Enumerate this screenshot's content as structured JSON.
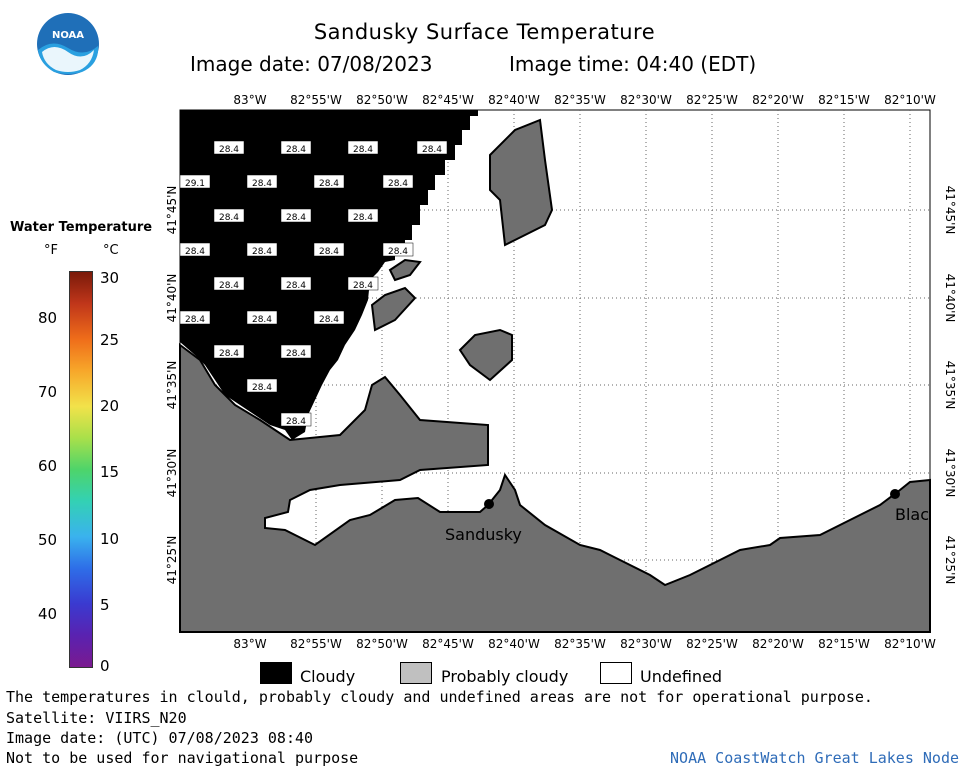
{
  "header": {
    "title": "Sandusky Surface Temperature",
    "image_date": "Image date: 07/08/2023",
    "image_time": "Image time: 04:40 (EDT)"
  },
  "logo": {
    "text": "NOAA"
  },
  "colorbar": {
    "title": "Water Temperature",
    "unit_f": "°F",
    "unit_c": "°C",
    "f_ticks": [
      "80",
      "70",
      "60",
      "50",
      "40"
    ],
    "c_ticks": [
      "30",
      "25",
      "20",
      "15",
      "10",
      "5",
      "0"
    ]
  },
  "map": {
    "lon_labels": [
      "83°W",
      "82°55'W",
      "82°50'W",
      "82°45'W",
      "82°40'W",
      "82°35'W",
      "82°30'W",
      "82°25'W",
      "82°20'W",
      "82°15'W",
      "82°10'W"
    ],
    "lat_labels": [
      "41°45'N",
      "41°40'N",
      "41°35'N",
      "41°30'N",
      "41°25'N"
    ],
    "cities": [
      "Sandusky",
      "Blac"
    ],
    "temperature_labels": [
      "28.4",
      "28.4",
      "28.4",
      "28.4",
      "29.1",
      "28.4",
      "28.4",
      "28.4",
      "28.4",
      "28.4",
      "28.4",
      "28.4",
      "28.4",
      "28.4",
      "28.4",
      "28.4",
      "28.4",
      "28.4",
      "28.4",
      "28.4",
      "28.4",
      "28.4",
      "28.4",
      "28.4",
      "28.4"
    ]
  },
  "legend": {
    "cloudy": "Cloudy",
    "probably_cloudy": "Probably cloudy",
    "undefined": "Undefined"
  },
  "footer": {
    "disclaimer": "The temperatures in clould, probably cloudy and undefined areas are not for operational purpose.",
    "satellite": "Satellite: VIIRS_N20",
    "utc_date": "Image date: (UTC) 07/08/2023  08:40",
    "nav_warning": "Not to be used for navigational purpose",
    "node": "NOAA CoastWatch Great Lakes Node"
  },
  "colors": {
    "land": "#6f6f6f",
    "cloudy": "#000000",
    "probably_cloudy": "#c0c0c0",
    "undefined": "#ffffff",
    "node_text": "#2f6cb8"
  }
}
